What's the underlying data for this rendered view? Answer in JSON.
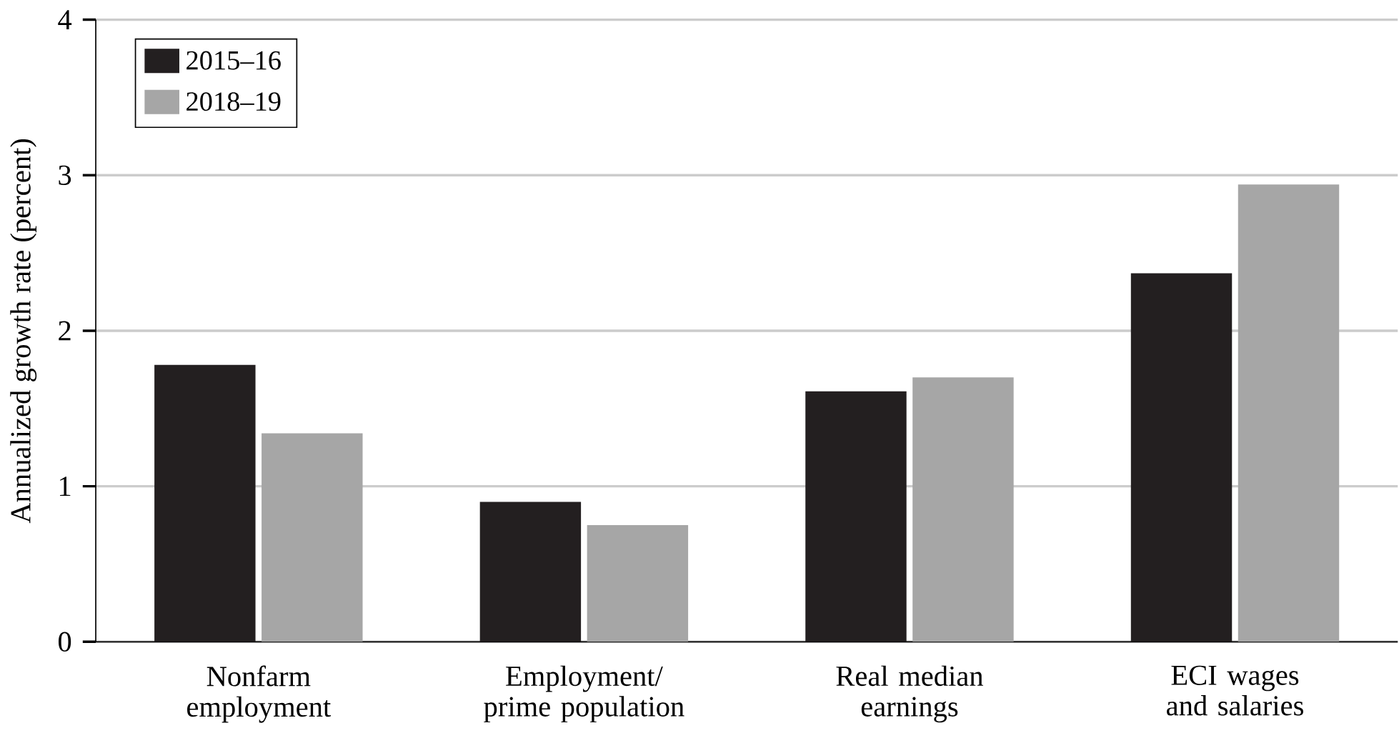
{
  "chart_data": {
    "type": "bar",
    "ylabel": "Annualized growth rate (percent)",
    "categories": [
      "Nonfarm employment",
      "Employment/ prime population",
      "Real median earnings",
      "ECI wages and salaries"
    ],
    "series": [
      {
        "name": "2015–16",
        "color": "#231f20",
        "values": [
          1.78,
          0.9,
          1.61,
          2.37
        ]
      },
      {
        "name": "2018–19",
        "color": "#a6a6a6",
        "values": [
          1.34,
          0.75,
          1.7,
          2.94
        ]
      }
    ],
    "ylim": [
      0,
      4
    ],
    "yticks": [
      0,
      1,
      2,
      3,
      4
    ],
    "grid": "y",
    "legend": "top left"
  }
}
